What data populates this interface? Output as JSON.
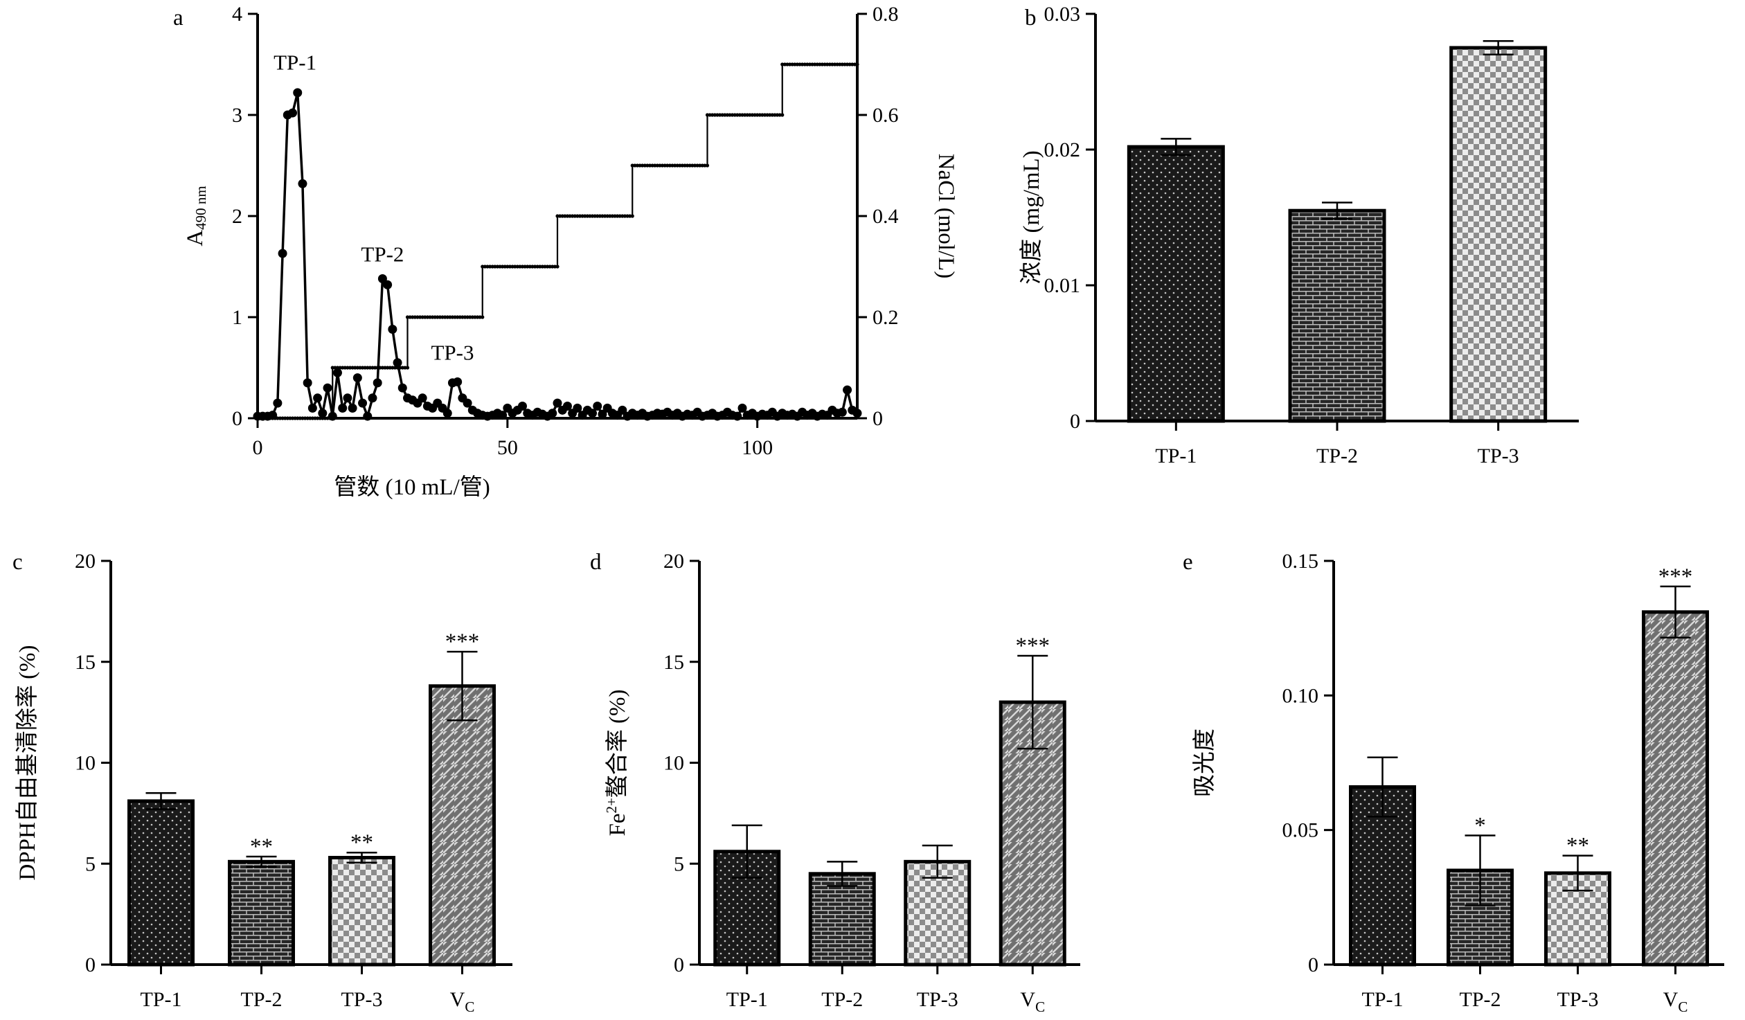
{
  "chart_data": [
    {
      "id": "a",
      "type": "line",
      "panel_label": "a",
      "xlabel": "管数 (10 mL/管)",
      "ylabel_main": "A",
      "ylabel_sub": "490 nm",
      "ylabel_right": "NaCl (mol/L)",
      "xlim": [
        0,
        120
      ],
      "ylim": [
        0,
        4
      ],
      "ylim_right": [
        0,
        0.8
      ],
      "x_ticks": [
        0,
        50,
        100
      ],
      "y_ticks": [
        0,
        1,
        2,
        3,
        4
      ],
      "y_ticks_right": [
        0,
        0.2,
        0.4,
        0.6,
        0.8
      ],
      "annotations": [
        {
          "text": "TP-1",
          "x": 7.5,
          "y": 3.45
        },
        {
          "text": "TP-2",
          "x": 25,
          "y": 1.55
        },
        {
          "text": "TP-3",
          "x": 39,
          "y": 0.58
        }
      ],
      "series": [
        {
          "name": "A490 nm",
          "axis": "left",
          "x": [
            0,
            1,
            2,
            3,
            4,
            5,
            6,
            7,
            8,
            9,
            10,
            11,
            12,
            13,
            14,
            15,
            16,
            17,
            18,
            19,
            20,
            21,
            22,
            23,
            24,
            25,
            26,
            27,
            28,
            29,
            30,
            31,
            32,
            33,
            34,
            35,
            36,
            37,
            38,
            39,
            40,
            41,
            42,
            43,
            44,
            45,
            46,
            47,
            48,
            49,
            50,
            51,
            52,
            53,
            54,
            55,
            56,
            57,
            58,
            59,
            60,
            61,
            62,
            63,
            64,
            65,
            66,
            67,
            68,
            69,
            70,
            71,
            72,
            73,
            74,
            75,
            76,
            77,
            78,
            79,
            80,
            81,
            82,
            83,
            84,
            85,
            86,
            87,
            88,
            89,
            90,
            91,
            92,
            93,
            94,
            95,
            96,
            97,
            98,
            99,
            100,
            101,
            102,
            103,
            104,
            105,
            106,
            107,
            108,
            109,
            110,
            111,
            112,
            113,
            114,
            115,
            116,
            117,
            118,
            119,
            120
          ],
          "values": [
            0.02,
            0.02,
            0.02,
            0.03,
            0.15,
            1.63,
            3.0,
            3.02,
            3.22,
            2.32,
            0.35,
            0.1,
            0.2,
            0.05,
            0.3,
            0.02,
            0.45,
            0.1,
            0.2,
            0.1,
            0.4,
            0.15,
            0.02,
            0.2,
            0.35,
            1.38,
            1.32,
            0.88,
            0.55,
            0.3,
            0.2,
            0.18,
            0.15,
            0.2,
            0.12,
            0.1,
            0.15,
            0.1,
            0.05,
            0.35,
            0.36,
            0.2,
            0.15,
            0.08,
            0.05,
            0.03,
            0.02,
            0.03,
            0.05,
            0.03,
            0.1,
            0.05,
            0.08,
            0.12,
            0.05,
            0.03,
            0.06,
            0.04,
            0.02,
            0.05,
            0.15,
            0.08,
            0.12,
            0.05,
            0.1,
            0.03,
            0.08,
            0.05,
            0.12,
            0.04,
            0.1,
            0.05,
            0.03,
            0.08,
            0.02,
            0.05,
            0.03,
            0.05,
            0.02,
            0.03,
            0.05,
            0.04,
            0.06,
            0.03,
            0.05,
            0.02,
            0.04,
            0.03,
            0.06,
            0.02,
            0.03,
            0.05,
            0.02,
            0.03,
            0.06,
            0.03,
            0.02,
            0.1,
            0.03,
            0.05,
            0.02,
            0.04,
            0.03,
            0.06,
            0.02,
            0.05,
            0.03,
            0.04,
            0.02,
            0.06,
            0.03,
            0.05,
            0.02,
            0.04,
            0.03,
            0.08,
            0.05,
            0.06,
            0.28,
            0.08,
            0.05
          ]
        },
        {
          "name": "NaCl (mol/L)",
          "axis": "right",
          "steps": [
            {
              "from": 0,
              "to": 15,
              "value": 0
            },
            {
              "from": 15,
              "to": 30,
              "value": 0.1
            },
            {
              "from": 30,
              "to": 45,
              "value": 0.2
            },
            {
              "from": 45,
              "to": 60,
              "value": 0.3
            },
            {
              "from": 60,
              "to": 75,
              "value": 0.4
            },
            {
              "from": 75,
              "to": 90,
              "value": 0.5
            },
            {
              "from": 90,
              "to": 105,
              "value": 0.6
            },
            {
              "from": 105,
              "to": 120,
              "value": 0.7
            }
          ]
        }
      ]
    },
    {
      "id": "b",
      "type": "bar",
      "panel_label": "b",
      "ylabel": "浓度 (mg/mL)",
      "categories": [
        "TP-1",
        "TP-2",
        "TP-3"
      ],
      "values": [
        0.0202,
        0.0155,
        0.0275
      ],
      "errors": [
        0.0006,
        0.0006,
        0.0005
      ],
      "ylim": [
        0,
        0.03
      ],
      "y_ticks": [
        "0",
        "0.01",
        "0.02",
        "0.03"
      ],
      "patterns": [
        "dots",
        "brick",
        "checker"
      ],
      "significance": [
        "",
        "",
        ""
      ]
    },
    {
      "id": "c",
      "type": "bar",
      "panel_label": "c",
      "ylabel": "DPPH自由基清除率 (%)",
      "categories": [
        "TP-1",
        "TP-2",
        "TP-3",
        "V"
      ],
      "category_subscripts": [
        "",
        "",
        "",
        "C"
      ],
      "values": [
        8.1,
        5.1,
        5.3,
        13.8
      ],
      "errors": [
        0.4,
        0.25,
        0.25,
        1.7
      ],
      "ylim": [
        0,
        20
      ],
      "y_ticks": [
        "0",
        "5",
        "10",
        "15",
        "20"
      ],
      "patterns": [
        "dots",
        "brick",
        "checker",
        "diagonal"
      ],
      "significance": [
        "",
        "**",
        "**",
        "***"
      ]
    },
    {
      "id": "d",
      "type": "bar",
      "panel_label": "d",
      "ylabel_main": "Fe",
      "ylabel_sup": "2+",
      "ylabel_rest": "螯合率 (%)",
      "categories": [
        "TP-1",
        "TP-2",
        "TP-3",
        "V"
      ],
      "category_subscripts": [
        "",
        "",
        "",
        "C"
      ],
      "values": [
        5.6,
        4.5,
        5.1,
        13.0
      ],
      "errors": [
        1.3,
        0.6,
        0.8,
        2.3
      ],
      "ylim": [
        0,
        20
      ],
      "y_ticks": [
        "0",
        "5",
        "10",
        "15",
        "20"
      ],
      "patterns": [
        "dots",
        "brick",
        "checker",
        "diagonal"
      ],
      "significance": [
        "",
        "",
        "",
        "***"
      ]
    },
    {
      "id": "e",
      "type": "bar",
      "panel_label": "e",
      "ylabel": "吸光度",
      "categories": [
        "TP-1",
        "TP-2",
        "TP-3",
        "V"
      ],
      "category_subscripts": [
        "",
        "",
        "",
        "C"
      ],
      "values": [
        0.066,
        0.035,
        0.034,
        0.131
      ],
      "errors": [
        0.011,
        0.013,
        0.0065,
        0.0095
      ],
      "ylim": [
        0,
        0.15
      ],
      "y_ticks": [
        "0",
        "0.05",
        "0.10",
        "0.15"
      ],
      "patterns": [
        "dots",
        "brick",
        "checker",
        "diagonal"
      ],
      "significance": [
        "",
        "*",
        "**",
        "***"
      ]
    }
  ]
}
